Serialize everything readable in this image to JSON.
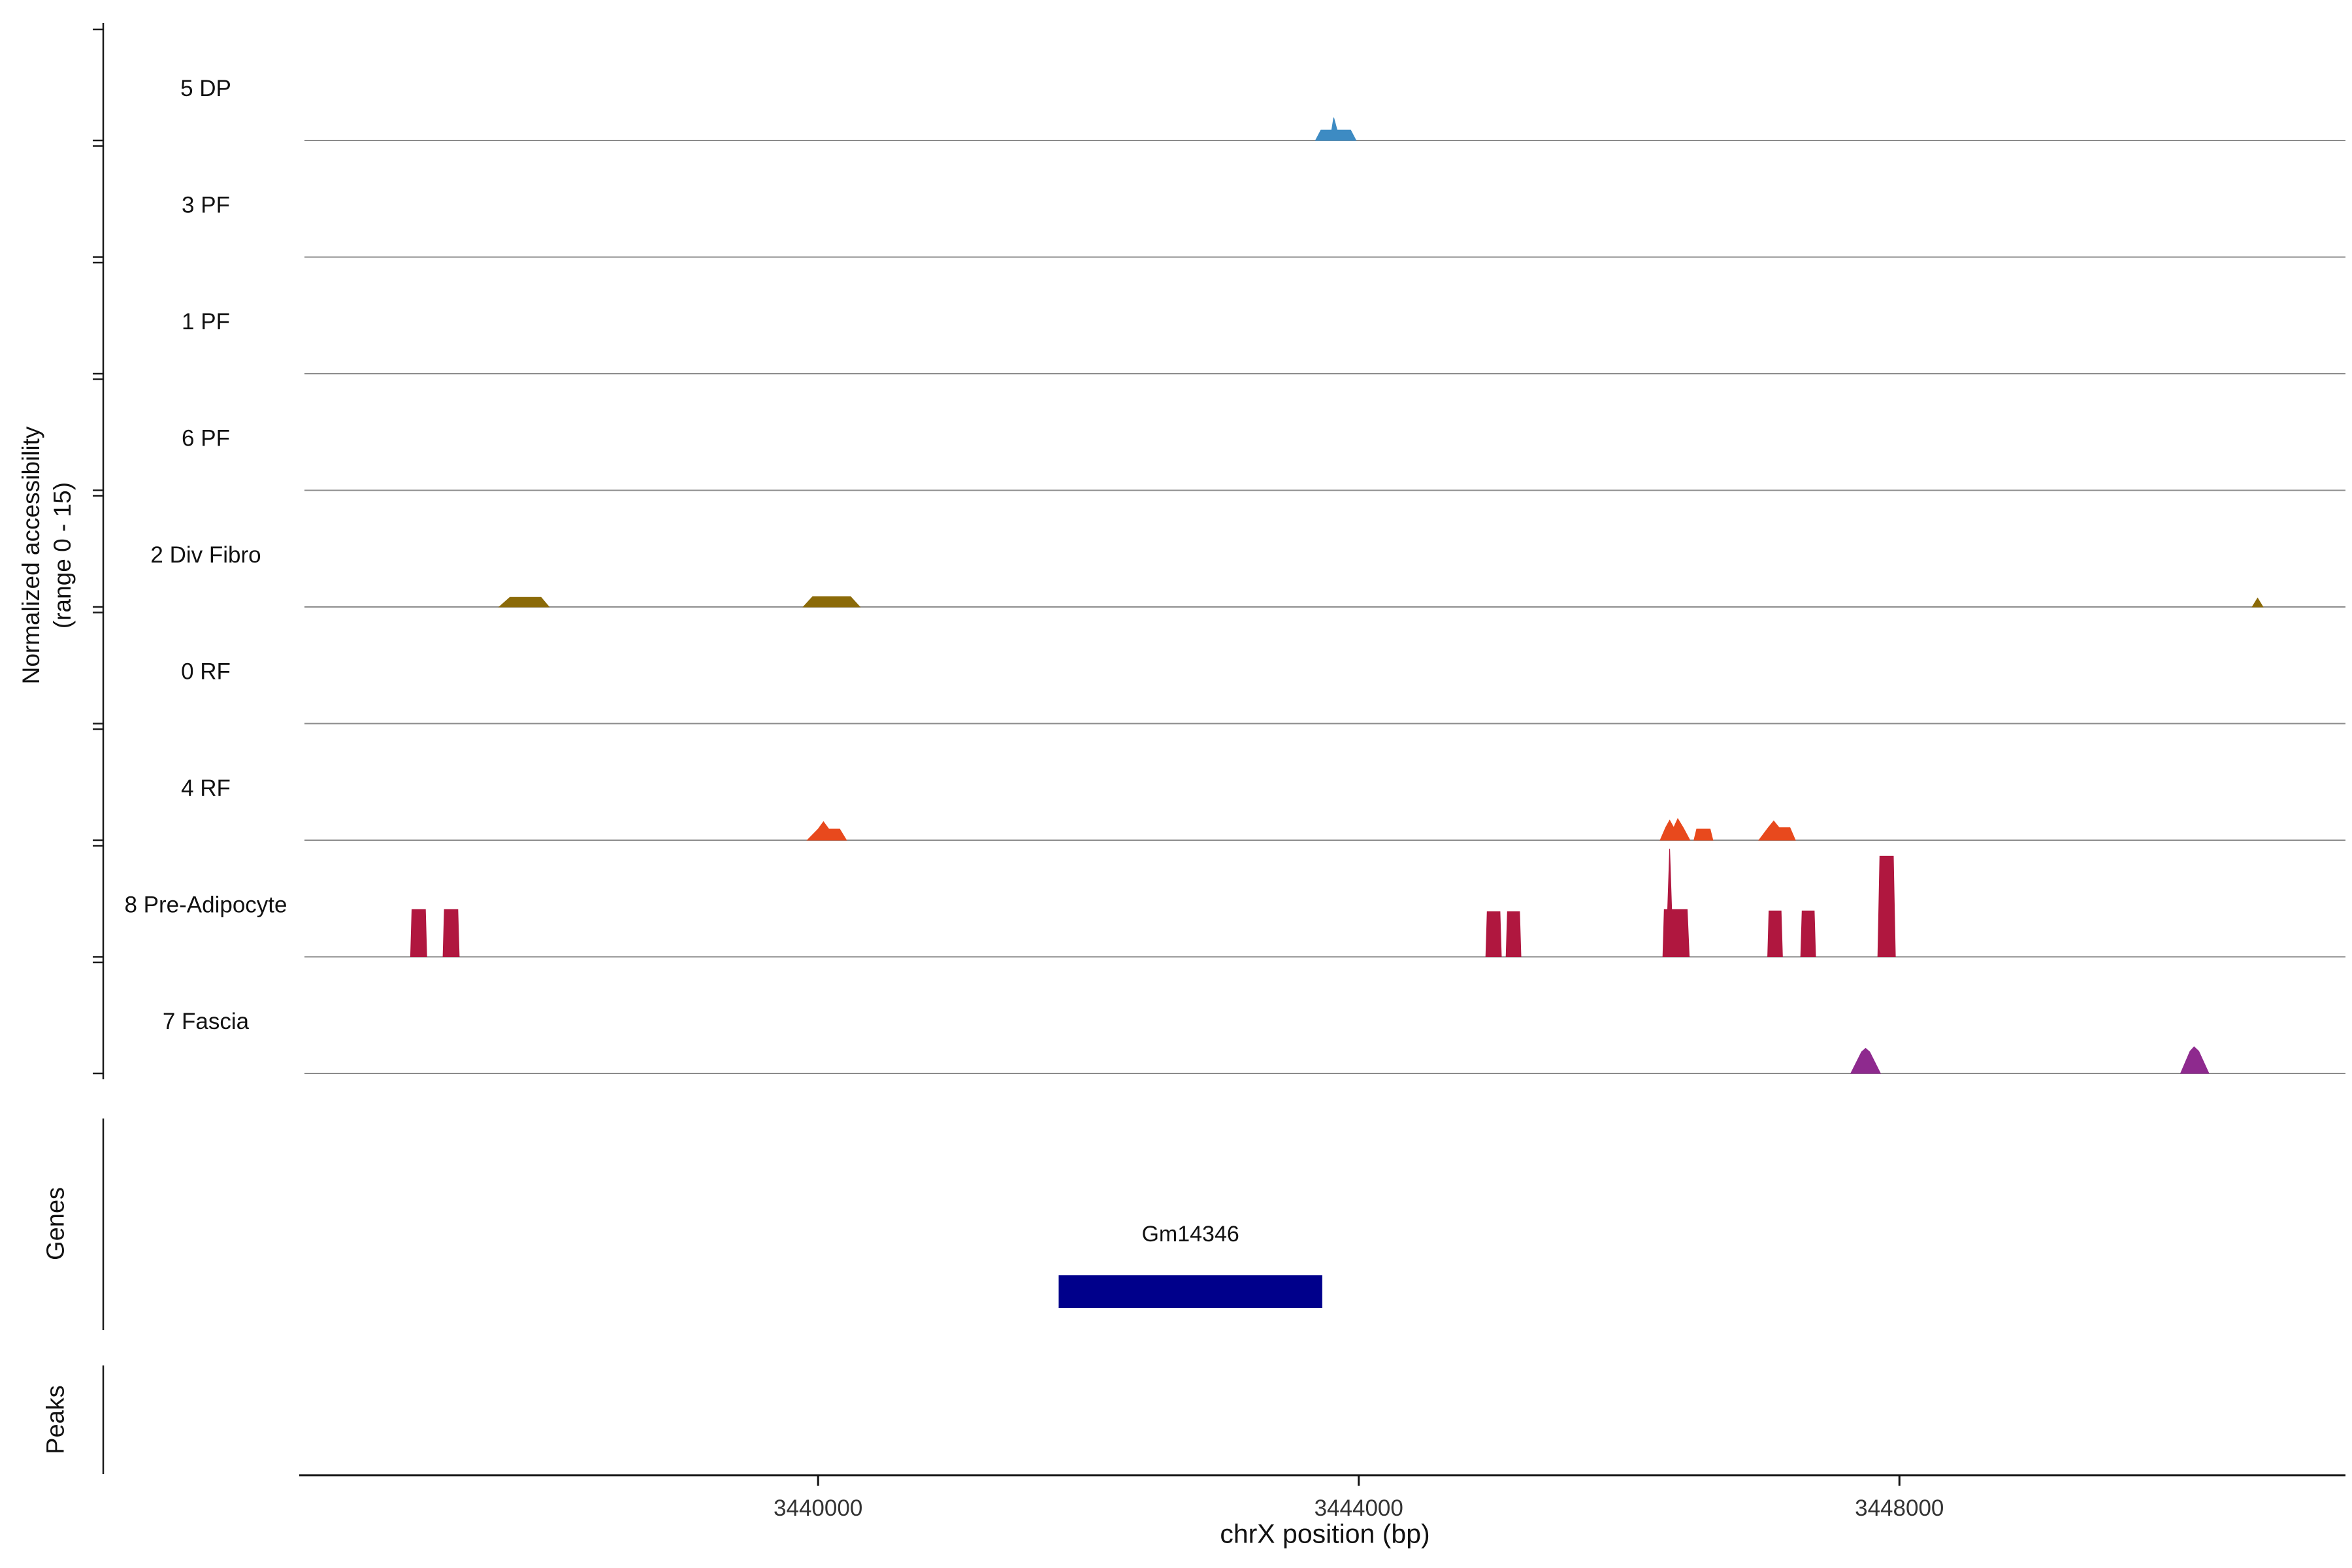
{
  "figure": {
    "y_axis_title_line1": "Normalized accessibility",
    "y_axis_title_line2": "(range 0 - 15)",
    "x_axis_title": "chrX position (bp)",
    "genes_section_label": "Genes",
    "peaks_section_label": "Peaks"
  },
  "chart_data": {
    "type": "area",
    "title": "",
    "xlabel": "chrX position (bp)",
    "ylabel": "Normalized accessibility (range 0 - 15)",
    "grid": false,
    "legend": false,
    "region": {
      "chrom": "chrX",
      "start": 3436200,
      "end": 3451300
    },
    "x_ticks": [
      3440000,
      3444000,
      3448000
    ],
    "y_range_per_track": [
      0,
      15
    ],
    "baseline_color": "#8C8C8C",
    "axis_color": "#1a1a1a",
    "tracks": [
      {
        "label": "5 DP",
        "color": "#3D8BC3",
        "peaks": [
          {
            "points": [
              [
                3443680,
                0
              ],
              [
                3443720,
                1.4
              ],
              [
                3443800,
                1.4
              ],
              [
                3443815,
                3.1
              ],
              [
                3443840,
                1.4
              ],
              [
                3443940,
                1.4
              ],
              [
                3443980,
                0
              ]
            ]
          }
        ]
      },
      {
        "label": "3 PF",
        "color": "",
        "peaks": []
      },
      {
        "label": "1 PF",
        "color": "",
        "peaks": []
      },
      {
        "label": "6 PF",
        "color": "",
        "peaks": []
      },
      {
        "label": "2 Div Fibro",
        "color": "#8B6A08",
        "peaks": [
          {
            "points": [
              [
                3437640,
                0
              ],
              [
                3437720,
                1.3
              ],
              [
                3437950,
                1.3
              ],
              [
                3438010,
                0
              ]
            ]
          },
          {
            "points": [
              [
                3439890,
                0
              ],
              [
                3439960,
                1.4
              ],
              [
                3440240,
                1.4
              ],
              [
                3440310,
                0
              ]
            ]
          },
          {
            "points": [
              [
                3450610,
                0
              ],
              [
                3450650,
                1.2
              ],
              [
                3450690,
                0
              ]
            ]
          }
        ]
      },
      {
        "label": "0 RF",
        "color": "",
        "peaks": []
      },
      {
        "label": "4 RF",
        "color": "#E8491D",
        "peaks": [
          {
            "points": [
              [
                3439920,
                0
              ],
              [
                3440000,
                1.5
              ],
              [
                3440040,
                2.5
              ],
              [
                3440080,
                1.5
              ],
              [
                3440160,
                1.5
              ],
              [
                3440210,
                0
              ]
            ]
          },
          {
            "points": [
              [
                3446230,
                0
              ],
              [
                3446270,
                1.7
              ],
              [
                3446300,
                2.7
              ],
              [
                3446330,
                1.7
              ],
              [
                3446360,
                2.9
              ],
              [
                3446400,
                1.7
              ],
              [
                3446450,
                0
              ]
            ]
          },
          {
            "points": [
              [
                3446480,
                0
              ],
              [
                3446500,
                1.5
              ],
              [
                3446600,
                1.5
              ],
              [
                3446620,
                0
              ]
            ]
          },
          {
            "points": [
              [
                3446960,
                0
              ],
              [
                3447030,
                1.7
              ],
              [
                3447070,
                2.6
              ],
              [
                3447110,
                1.7
              ],
              [
                3447190,
                1.7
              ],
              [
                3447230,
                0
              ]
            ]
          }
        ]
      },
      {
        "label": "8 Pre-Adipocyte",
        "color": "#B0173F",
        "peaks": [
          {
            "points": [
              [
                3436985,
                0
              ],
              [
                3436995,
                6.4
              ],
              [
                3437095,
                6.4
              ],
              [
                3437105,
                0
              ]
            ]
          },
          {
            "points": [
              [
                3437225,
                0
              ],
              [
                3437235,
                6.4
              ],
              [
                3437335,
                6.4
              ],
              [
                3437345,
                0
              ]
            ]
          },
          {
            "points": [
              [
                3444940,
                0
              ],
              [
                3444950,
                6.1
              ],
              [
                3445045,
                6.1
              ],
              [
                3445055,
                0
              ]
            ]
          },
          {
            "points": [
              [
                3445090,
                0
              ],
              [
                3445100,
                6.1
              ],
              [
                3445190,
                6.1
              ],
              [
                3445200,
                0
              ]
            ]
          },
          {
            "points": [
              [
                3446250,
                0
              ],
              [
                3446260,
                6.4
              ],
              [
                3446285,
                6.4
              ],
              [
                3446300,
                14.6
              ],
              [
                3446315,
                6.4
              ],
              [
                3446430,
                6.4
              ],
              [
                3446445,
                0
              ]
            ]
          },
          {
            "points": [
              [
                3447025,
                0
              ],
              [
                3447035,
                6.2
              ],
              [
                3447125,
                6.2
              ],
              [
                3447135,
                0
              ]
            ]
          },
          {
            "points": [
              [
                3447270,
                0
              ],
              [
                3447280,
                6.2
              ],
              [
                3447370,
                6.2
              ],
              [
                3447380,
                0
              ]
            ]
          },
          {
            "points": [
              [
                3447840,
                0
              ],
              [
                3447855,
                13.6
              ],
              [
                3447955,
                13.6
              ],
              [
                3447970,
                0
              ]
            ]
          }
        ]
      },
      {
        "label": "7 Fascia",
        "color": "#8E2A8E",
        "peaks": [
          {
            "points": [
              [
                3447640,
                0
              ],
              [
                3447720,
                2.9
              ],
              [
                3447750,
                3.4
              ],
              [
                3447780,
                2.9
              ],
              [
                3447860,
                0
              ]
            ]
          },
          {
            "points": [
              [
                3450080,
                0
              ],
              [
                3450150,
                3.0
              ],
              [
                3450180,
                3.6
              ],
              [
                3450215,
                3.0
              ],
              [
                3450290,
                0
              ]
            ]
          }
        ]
      }
    ],
    "genes": [
      {
        "name": "Gm14346",
        "start": 3441780,
        "end": 3443730,
        "color": "#00008B"
      }
    ],
    "peaks_track": []
  }
}
